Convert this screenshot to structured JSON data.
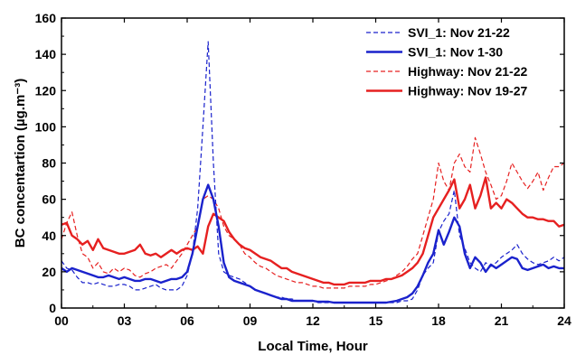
{
  "chart_data": {
    "type": "line",
    "xlabel": "Local Time, Hour",
    "ylabel": "BC concentartion (µg.m⁻³)",
    "xlim": [
      0,
      24
    ],
    "ylim": [
      0,
      160
    ],
    "xticks": [
      0,
      3,
      6,
      9,
      12,
      15,
      18,
      21,
      24
    ],
    "xtick_labels": [
      "00",
      "03",
      "06",
      "09",
      "12",
      "15",
      "18",
      "21",
      "24"
    ],
    "yticks": [
      0,
      20,
      40,
      60,
      80,
      100,
      120,
      140,
      160
    ],
    "ytick_labels": [
      "0",
      "20",
      "40",
      "60",
      "80",
      "100",
      "120",
      "140",
      "160"
    ],
    "grid": false,
    "legend_position": "top-right",
    "series": [
      {
        "name": "SVI_1: Nov 21-22",
        "color": "#1a22cc",
        "style": "dashed",
        "x": [
          0,
          0.25,
          0.5,
          0.75,
          1,
          1.25,
          1.5,
          1.75,
          2,
          2.25,
          2.5,
          2.75,
          3,
          3.25,
          3.5,
          3.75,
          4,
          4.25,
          4.5,
          4.75,
          5,
          5.25,
          5.5,
          5.75,
          6,
          6.25,
          6.5,
          6.75,
          7,
          7.25,
          7.5,
          7.75,
          8,
          8.25,
          8.5,
          8.75,
          9,
          9.25,
          9.5,
          9.75,
          10,
          10.25,
          10.5,
          10.75,
          11,
          11.25,
          11.5,
          11.75,
          12,
          12.25,
          12.5,
          12.75,
          13,
          13.25,
          13.5,
          13.75,
          14,
          14.25,
          14.5,
          14.75,
          15,
          15.25,
          15.5,
          15.75,
          16,
          16.25,
          16.5,
          16.75,
          17,
          17.25,
          17.5,
          17.75,
          18,
          18.25,
          18.5,
          18.75,
          19,
          19.25,
          19.5,
          19.75,
          20,
          20.25,
          20.5,
          20.75,
          21,
          21.25,
          21.5,
          21.75,
          22,
          22.25,
          22.5,
          22.75,
          23,
          23.25,
          23.5,
          23.75,
          24
        ],
        "y": [
          26,
          22,
          21,
          17,
          14,
          14,
          13,
          14,
          13,
          12,
          12,
          13,
          13,
          12,
          10,
          10,
          11,
          12,
          13,
          11,
          10,
          10,
          10,
          12,
          18,
          30,
          55,
          100,
          147,
          80,
          30,
          20,
          18,
          17,
          16,
          14,
          12,
          10,
          9,
          8,
          7,
          6,
          6,
          5,
          5,
          4,
          4,
          4,
          4,
          3,
          3,
          3,
          3,
          3,
          3,
          3,
          3,
          3,
          3,
          3,
          3,
          3,
          3,
          3,
          3,
          4,
          4,
          5,
          10,
          18,
          22,
          25,
          42,
          48,
          52,
          65,
          40,
          33,
          25,
          22,
          20,
          25,
          23,
          25,
          28,
          30,
          32,
          35,
          30,
          27,
          25,
          24,
          25,
          26,
          28,
          26,
          28
        ]
      },
      {
        "name": "SVI_1: Nov 1-30",
        "color": "#1a22cc",
        "style": "solid",
        "x": [
          0,
          0.25,
          0.5,
          0.75,
          1,
          1.25,
          1.5,
          1.75,
          2,
          2.25,
          2.5,
          2.75,
          3,
          3.25,
          3.5,
          3.75,
          4,
          4.25,
          4.5,
          4.75,
          5,
          5.25,
          5.5,
          5.75,
          6,
          6.25,
          6.5,
          6.75,
          7,
          7.25,
          7.5,
          7.75,
          8,
          8.25,
          8.5,
          8.75,
          9,
          9.25,
          9.5,
          9.75,
          10,
          10.25,
          10.5,
          10.75,
          11,
          11.25,
          11.5,
          11.75,
          12,
          12.25,
          12.5,
          12.75,
          13,
          13.25,
          13.5,
          13.75,
          14,
          14.25,
          14.5,
          14.75,
          15,
          15.25,
          15.5,
          15.75,
          16,
          16.25,
          16.5,
          16.75,
          17,
          17.25,
          17.5,
          17.75,
          18,
          18.25,
          18.5,
          18.75,
          19,
          19.25,
          19.5,
          19.75,
          20,
          20.25,
          20.5,
          20.75,
          21,
          21.25,
          21.5,
          21.75,
          22,
          22.25,
          22.5,
          22.75,
          23,
          23.25,
          23.5,
          23.75,
          24
        ],
        "y": [
          22,
          20,
          22,
          21,
          20,
          19,
          18,
          17,
          17,
          18,
          17,
          16,
          17,
          16,
          15,
          15,
          16,
          16,
          15,
          14,
          15,
          16,
          16,
          17,
          20,
          30,
          45,
          60,
          68,
          60,
          45,
          25,
          17,
          15,
          14,
          13,
          12,
          10,
          9,
          8,
          7,
          6,
          5,
          5,
          4,
          4,
          4,
          4,
          4,
          3.5,
          3.5,
          3.5,
          3,
          3,
          3,
          3,
          3,
          3,
          3,
          3,
          3,
          3,
          3,
          3.5,
          4,
          5,
          6,
          8,
          12,
          18,
          25,
          30,
          43,
          35,
          42,
          50,
          45,
          30,
          22,
          28,
          25,
          20,
          24,
          22,
          24,
          26,
          28,
          27,
          22,
          21,
          22,
          23,
          24,
          22,
          23,
          22,
          22
        ]
      },
      {
        "name": "Highway: Nov 21-22",
        "color": "#e62020",
        "style": "dashed",
        "x": [
          0,
          0.25,
          0.5,
          0.75,
          1,
          1.25,
          1.5,
          1.75,
          2,
          2.25,
          2.5,
          2.75,
          3,
          3.25,
          3.5,
          3.75,
          4,
          4.25,
          4.5,
          4.75,
          5,
          5.25,
          5.5,
          5.75,
          6,
          6.25,
          6.5,
          6.75,
          7,
          7.25,
          7.5,
          7.75,
          8,
          8.25,
          8.5,
          8.75,
          9,
          9.25,
          9.5,
          9.75,
          10,
          10.25,
          10.5,
          10.75,
          11,
          11.25,
          11.5,
          11.75,
          12,
          12.25,
          12.5,
          12.75,
          13,
          13.25,
          13.5,
          13.75,
          14,
          14.25,
          14.5,
          14.75,
          15,
          15.25,
          15.5,
          15.75,
          16,
          16.25,
          16.5,
          16.75,
          17,
          17.25,
          17.5,
          17.75,
          18,
          18.25,
          18.5,
          18.75,
          19,
          19.25,
          19.5,
          19.75,
          20,
          20.25,
          20.5,
          20.75,
          21,
          21.25,
          21.5,
          21.75,
          22,
          22.25,
          22.5,
          22.75,
          23,
          23.25,
          23.5,
          23.75,
          24
        ],
        "y": [
          38,
          47,
          53,
          40,
          30,
          28,
          22,
          25,
          20,
          19,
          22,
          20,
          22,
          21,
          18,
          17,
          19,
          20,
          22,
          23,
          24,
          22,
          26,
          30,
          35,
          40,
          45,
          60,
          62,
          60,
          55,
          45,
          40,
          38,
          35,
          30,
          28,
          25,
          23,
          22,
          20,
          18,
          17,
          16,
          15,
          14,
          14,
          13,
          12,
          12,
          11,
          11,
          11,
          11,
          11,
          12,
          12,
          12,
          12,
          13,
          13,
          14,
          15,
          16,
          18,
          20,
          23,
          27,
          30,
          40,
          50,
          60,
          80,
          70,
          65,
          80,
          85,
          78,
          75,
          94,
          85,
          75,
          68,
          60,
          62,
          70,
          80,
          75,
          70,
          66,
          70,
          75,
          65,
          72,
          78,
          78,
          80
        ]
      },
      {
        "name": "Highway: Nov 19-27",
        "color": "#e62020",
        "style": "solid",
        "x": [
          0,
          0.25,
          0.5,
          0.75,
          1,
          1.25,
          1.5,
          1.75,
          2,
          2.25,
          2.5,
          2.75,
          3,
          3.25,
          3.5,
          3.75,
          4,
          4.25,
          4.5,
          4.75,
          5,
          5.25,
          5.5,
          5.75,
          6,
          6.25,
          6.5,
          6.75,
          7,
          7.25,
          7.5,
          7.75,
          8,
          8.25,
          8.5,
          8.75,
          9,
          9.25,
          9.5,
          9.75,
          10,
          10.25,
          10.5,
          10.75,
          11,
          11.25,
          11.5,
          11.75,
          12,
          12.25,
          12.5,
          12.75,
          13,
          13.25,
          13.5,
          13.75,
          14,
          14.25,
          14.5,
          14.75,
          15,
          15.25,
          15.5,
          15.75,
          16,
          16.25,
          16.5,
          16.75,
          17,
          17.25,
          17.5,
          17.75,
          18,
          18.25,
          18.5,
          18.75,
          19,
          19.25,
          19.5,
          19.75,
          20,
          20.25,
          20.5,
          20.75,
          21,
          21.25,
          21.5,
          21.75,
          22,
          22.25,
          22.5,
          22.75,
          23,
          23.25,
          23.5,
          23.75,
          24
        ],
        "y": [
          46,
          47,
          40,
          38,
          35,
          37,
          32,
          38,
          33,
          32,
          31,
          30,
          30,
          31,
          32,
          35,
          30,
          29,
          30,
          28,
          30,
          32,
          30,
          32,
          33,
          32,
          34,
          30,
          45,
          52,
          50,
          48,
          42,
          38,
          35,
          33,
          32,
          30,
          28,
          27,
          26,
          24,
          22,
          22,
          20,
          19,
          18,
          17,
          16,
          15,
          14,
          14,
          13,
          13,
          13,
          14,
          14,
          14,
          14,
          15,
          15,
          15,
          16,
          16,
          17,
          18,
          20,
          22,
          25,
          30,
          40,
          50,
          55,
          60,
          65,
          71,
          55,
          60,
          68,
          55,
          62,
          72,
          55,
          58,
          55,
          60,
          58,
          55,
          52,
          50,
          50,
          49,
          49,
          48,
          48,
          45,
          46
        ]
      }
    ]
  }
}
